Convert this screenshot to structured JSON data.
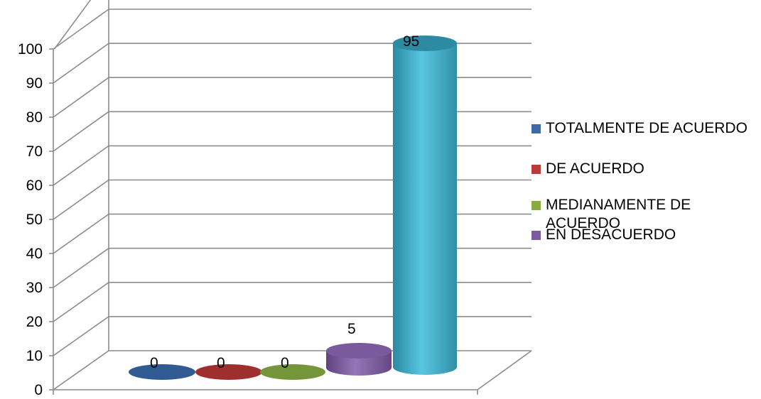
{
  "chart_data": {
    "type": "bar",
    "style": "3d-cylinder",
    "categories": [
      "TOTALMENTE DE ACUERDO",
      "DE ACUERDO",
      "MEDIANAMENTE DE ACUERDO",
      "EN DESACUERDO",
      ""
    ],
    "values": [
      0,
      0,
      0,
      5,
      95
    ],
    "data_labels": [
      "0",
      "0",
      "0",
      "5",
      "95"
    ],
    "colors": [
      "#3d6aa6",
      "#b83b3a",
      "#88aa3f",
      "#7c5a9f",
      "#45b6d0"
    ],
    "y_ticks": [
      "0",
      "10",
      "20",
      "30",
      "40",
      "50",
      "60",
      "70",
      "80",
      "90",
      "100"
    ],
    "ylim": [
      0,
      100
    ],
    "grid": true,
    "legend_position": "right",
    "legend": [
      {
        "label": "TOTALMENTE DE ACUERDO",
        "color": "#3d6aa6"
      },
      {
        "label": "DE ACUERDO",
        "color": "#b83b3a"
      },
      {
        "label": "MEDIANAMENTE DE ACUERDO",
        "color": "#88aa3f"
      },
      {
        "label": "EN DESACUERDO",
        "color": "#7c5a9f"
      }
    ]
  }
}
